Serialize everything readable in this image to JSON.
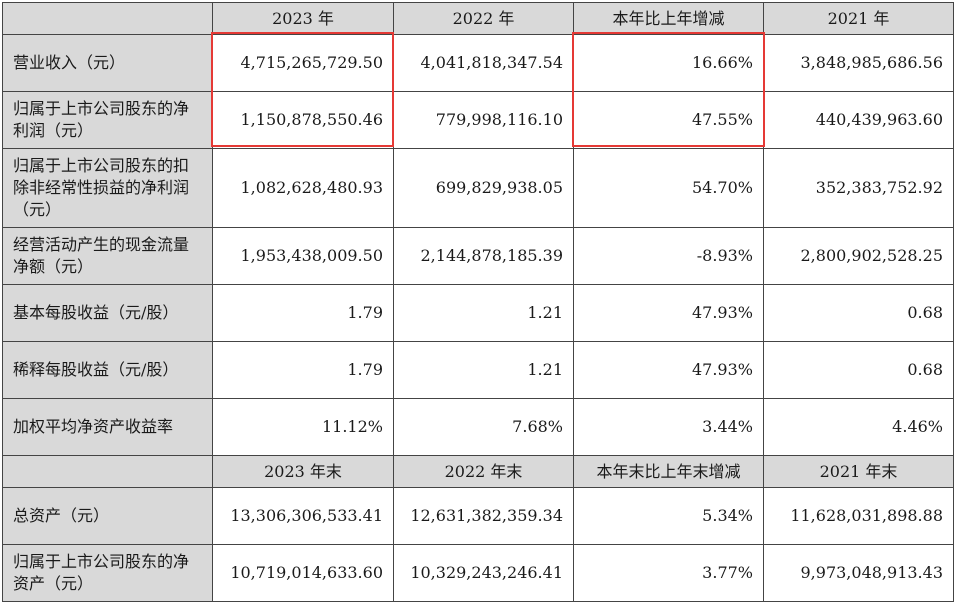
{
  "header_top": [
    "",
    "2023 年",
    "2022 年",
    "本年比上年增减",
    "2021 年"
  ],
  "rows_top": [
    {
      "label": "营业收入（元）",
      "values": [
        "4,715,265,729.50",
        "4,041,818,347.54",
        "16.66%",
        "3,848,985,686.56"
      ]
    },
    {
      "label": "归属于上市公司股东的净利润（元）",
      "values": [
        "1,150,878,550.46",
        "779,998,116.10",
        "47.55%",
        "440,439,963.60"
      ]
    },
    {
      "label": "归属于上市公司股东的扣除非经常性损益的净利润（元）",
      "values": [
        "1,082,628,480.93",
        "699,829,938.05",
        "54.70%",
        "352,383,752.92"
      ]
    },
    {
      "label": "经营活动产生的现金流量净额（元）",
      "values": [
        "1,953,438,009.50",
        "2,144,878,185.39",
        "-8.93%",
        "2,800,902,528.25"
      ]
    },
    {
      "label": "基本每股收益（元/股）",
      "values": [
        "1.79",
        "1.21",
        "47.93%",
        "0.68"
      ]
    },
    {
      "label": "稀释每股收益（元/股）",
      "values": [
        "1.79",
        "1.21",
        "47.93%",
        "0.68"
      ]
    },
    {
      "label": "加权平均净资产收益率",
      "values": [
        "11.12%",
        "7.68%",
        "3.44%",
        "4.46%"
      ]
    }
  ],
  "header_bottom": [
    "",
    "2023 年末",
    "2022 年末",
    "本年末比上年末增减",
    "2021 年末"
  ],
  "rows_bottom": [
    {
      "label": "总资产（元）",
      "values": [
        "13,306,306,533.41",
        "12,631,382,359.34",
        "5.34%",
        "11,628,031,898.88"
      ]
    },
    {
      "label": "归属于上市公司股东的净资产（元）",
      "values": [
        "10,719,014,633.60",
        "10,329,243,246.41",
        "3.77%",
        "9,973,048,913.43"
      ]
    }
  ],
  "highlight_color": "#e53935"
}
